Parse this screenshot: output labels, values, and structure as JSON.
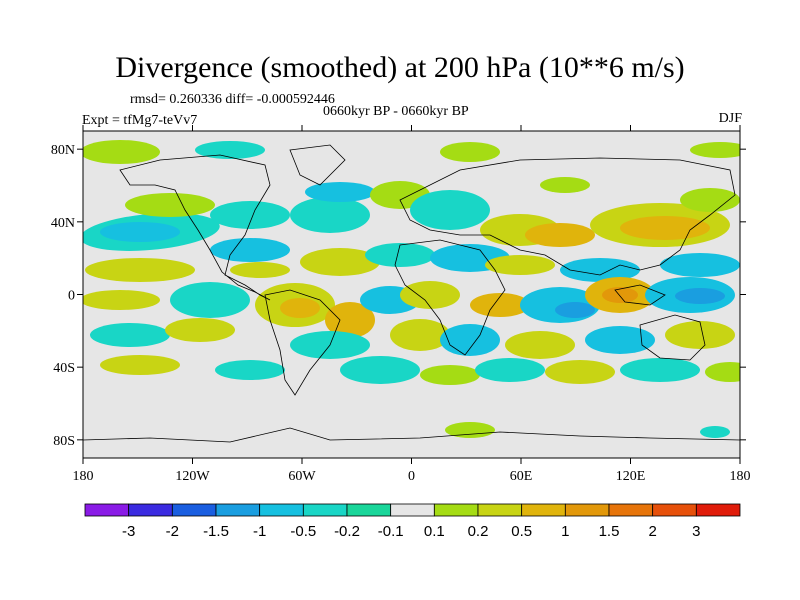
{
  "title": "Divergence (smoothed) at 200 hPa (10**6 m/s)",
  "stats": "rmsd= 0.260336 diff= -0.000592446",
  "experiment": "Expt = tfMg7-teVv7",
  "period": "0660kyr BP - 0660kyr BP",
  "season": "DJF",
  "map": {
    "projection": "cylindrical-equidistant",
    "lon_range": [
      -180,
      180
    ],
    "lat_range": [
      -90,
      90
    ],
    "background_color": "#e6e6e6",
    "coastline_color": "#000000",
    "lat_ticks": [
      {
        "value": 80,
        "label": "80N"
      },
      {
        "value": 40,
        "label": "40N"
      },
      {
        "value": 0,
        "label": "0"
      },
      {
        "value": -40,
        "label": "40S"
      },
      {
        "value": -80,
        "label": "80S"
      }
    ],
    "lon_ticks": [
      {
        "value": -180,
        "label": "180"
      },
      {
        "value": -120,
        "label": "120W"
      },
      {
        "value": -60,
        "label": "60W"
      },
      {
        "value": 0,
        "label": "0"
      },
      {
        "value": 60,
        "label": "60E"
      },
      {
        "value": 120,
        "label": "120E"
      },
      {
        "value": 180,
        "label": "180"
      }
    ]
  },
  "colorbar": {
    "colors": [
      "#8a1be6",
      "#3a2ae0",
      "#1a5ee0",
      "#1a9ee0",
      "#16c0e0",
      "#19d6c6",
      "#1ad69a",
      "#e6e6e6",
      "#a5dc14",
      "#c8d414",
      "#e0b40c",
      "#e2980a",
      "#e6740a",
      "#e6500a",
      "#e01c0a"
    ],
    "labels": [
      "-3",
      "-2",
      "-1.5",
      "-1",
      "-0.5",
      "-0.2",
      "-0.1",
      "0.1",
      "0.2",
      "0.5",
      "1",
      "1.5",
      "2",
      "3"
    ]
  }
}
